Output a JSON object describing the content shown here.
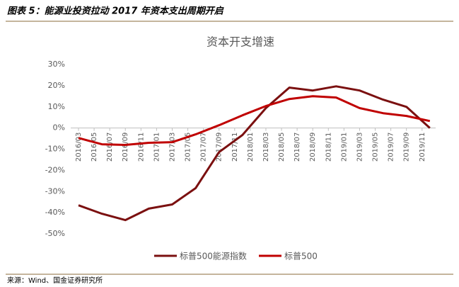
{
  "header": {
    "title": "图表 5：能源业投资拉动 2017 年资本支出周期开启"
  },
  "source": "来源：Wind、国金证券研究所",
  "chart_data": {
    "type": "line",
    "title": "资本开支增速",
    "x": [
      "2016/03",
      "2016/06",
      "2016/09",
      "2016/12",
      "2017/03",
      "2017/06",
      "2017/09",
      "2017/12",
      "2018/03",
      "2018/06",
      "2018/09",
      "2018/12",
      "2019/03",
      "2019/06",
      "2019/09",
      "2019/12"
    ],
    "xticks": [
      "2016/03",
      "2016/05",
      "2016/07",
      "2016/09",
      "2016/11",
      "2017/01",
      "2017/03",
      "2017/05",
      "2017/07",
      "2017/09",
      "2017/11",
      "2018/01",
      "2018/03",
      "2018/05",
      "2018/07",
      "2018/09",
      "2018/11",
      "2019/01",
      "2019/03",
      "2019/05",
      "2019/07",
      "2019/09",
      "2019/11"
    ],
    "series": [
      {
        "name": "标普500能源指数",
        "color": "#7b1010",
        "values": [
          -36.5,
          -40.5,
          -43.5,
          -38.1,
          -36.1,
          -28.4,
          -11.4,
          -3.3,
          9.4,
          19.1,
          17.7,
          19.7,
          17.7,
          13.4,
          10,
          0
        ]
      },
      {
        "name": "标普500",
        "color": "#c00000",
        "values": [
          -4.7,
          -7.7,
          -8,
          -7,
          -6.7,
          -3,
          1.3,
          6,
          10.4,
          13.7,
          15,
          14.4,
          9.4,
          7,
          5.7,
          3.3
        ]
      }
    ],
    "ylim": [
      -50,
      30
    ],
    "yticks": [
      {
        "value": 30,
        "label": "30%"
      },
      {
        "value": 20,
        "label": "20%"
      },
      {
        "value": 10,
        "label": "10%"
      },
      {
        "value": 0,
        "label": "0%"
      },
      {
        "value": -10,
        "label": "-10%"
      },
      {
        "value": -20,
        "label": "-20%"
      },
      {
        "value": -30,
        "label": "-30%"
      },
      {
        "value": -40,
        "label": "-40%"
      },
      {
        "value": -50,
        "label": "-50%"
      }
    ],
    "legend": "bottom"
  }
}
